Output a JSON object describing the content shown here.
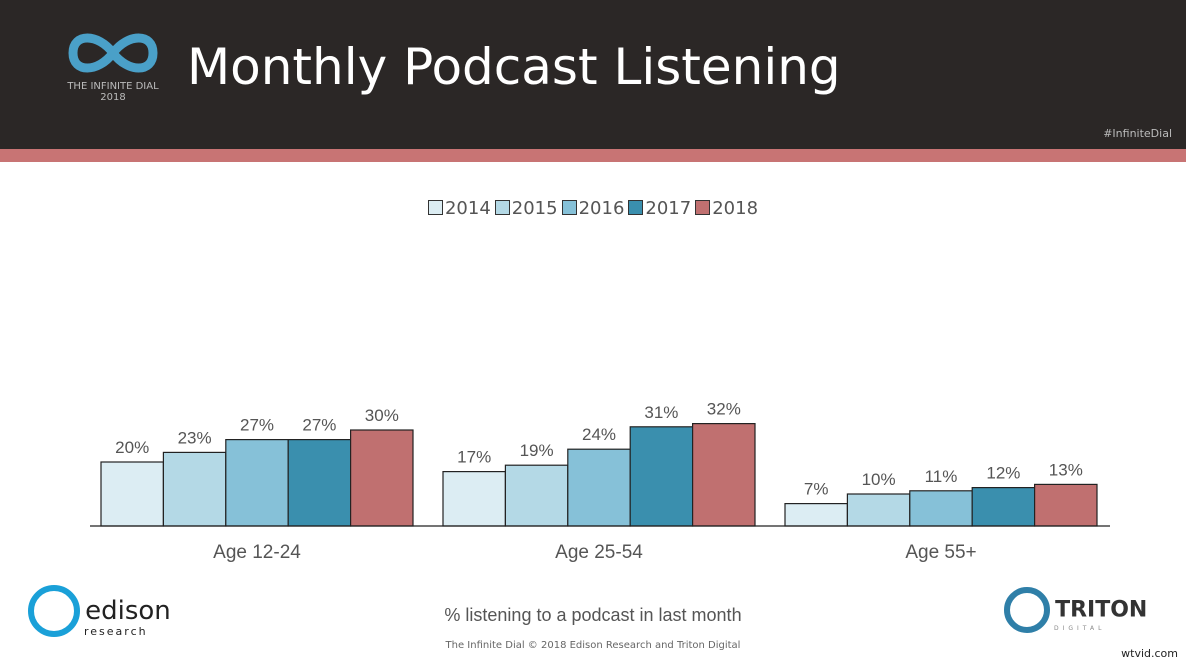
{
  "header": {
    "title": "Monthly Podcast Listening",
    "hashtag": "#InfiniteDial",
    "logo_text": "THE INFINITE DIAL",
    "logo_year": "2018"
  },
  "footer": {
    "subtitle": "% listening to a podcast in last month",
    "copyright": "The Infinite Dial   © 2018 Edison Research and Triton Digital",
    "edison": "edison",
    "edison_sub": "research",
    "triton": "TRITON",
    "triton_sub": "DIGITAL",
    "watermark": "wtvid.com"
  },
  "chart_data": {
    "type": "bar",
    "title": "Monthly Podcast Listening",
    "xlabel": "% listening to a podcast in last month",
    "ylabel": "",
    "ylim": [
      0,
      35
    ],
    "grid": false,
    "legend": "top",
    "categories": [
      "Age 12-24",
      "Age 25-54",
      "Age 55+"
    ],
    "series": [
      {
        "name": "2014",
        "color": "#dcedf3",
        "values": [
          20,
          17,
          7
        ]
      },
      {
        "name": "2015",
        "color": "#b4d9e6",
        "values": [
          23,
          19,
          10
        ]
      },
      {
        "name": "2016",
        "color": "#86c1d8",
        "values": [
          27,
          24,
          11
        ]
      },
      {
        "name": "2017",
        "color": "#3a8fae",
        "values": [
          27,
          31,
          12
        ]
      },
      {
        "name": "2018",
        "color": "#c07070",
        "values": [
          30,
          32,
          13
        ]
      }
    ]
  }
}
